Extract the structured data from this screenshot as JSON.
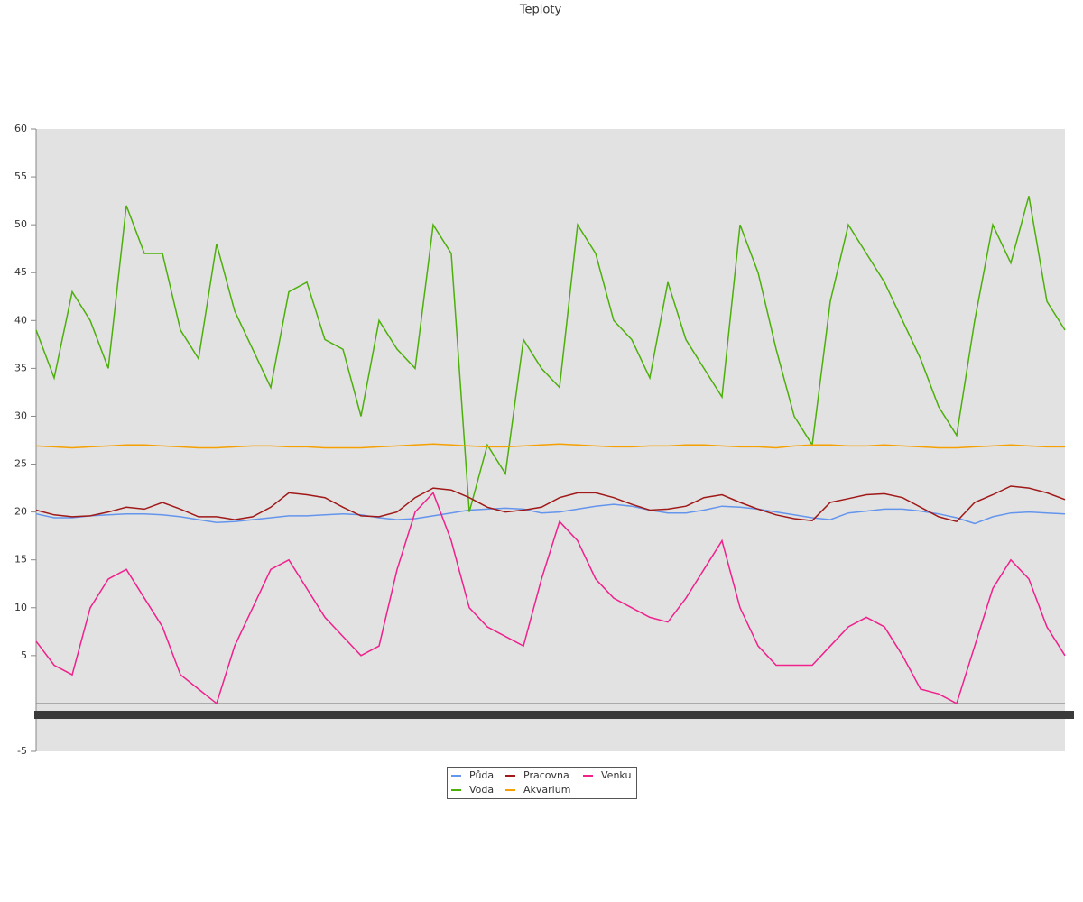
{
  "chart_data": {
    "type": "line",
    "title": "Teploty",
    "ylim": [
      -5,
      60
    ],
    "yticks": [
      60,
      55,
      50,
      45,
      40,
      35,
      30,
      25,
      20,
      15,
      10,
      5,
      -5
    ],
    "legend": "bottom",
    "series": [
      {
        "name": "Půda",
        "color": "#6495ed",
        "values": [
          19.8,
          19.4,
          19.4,
          19.6,
          19.7,
          19.8,
          19.8,
          19.7,
          19.5,
          19.2,
          18.9,
          19.0,
          19.2,
          19.4,
          19.6,
          19.6,
          19.7,
          19.8,
          19.7,
          19.4,
          19.2,
          19.3,
          19.6,
          19.9,
          20.2,
          20.3,
          20.4,
          20.3,
          19.9,
          20.0,
          20.3,
          20.6,
          20.8,
          20.6,
          20.2,
          19.9,
          19.9,
          20.2,
          20.6,
          20.5,
          20.3,
          20.0,
          19.7,
          19.4,
          19.2,
          19.9,
          20.1,
          20.3,
          20.3,
          20.1,
          19.8,
          19.4,
          18.8,
          19.5,
          19.9,
          20.0,
          19.9,
          19.8
        ]
      },
      {
        "name": "Voda",
        "color": "#4caf0a",
        "values": [
          39,
          34,
          43,
          40,
          35,
          52,
          47,
          47,
          39,
          36,
          48,
          41,
          37,
          33,
          43,
          44,
          38,
          37,
          30,
          40,
          37,
          35,
          50,
          47,
          20,
          27,
          24,
          38,
          35,
          33,
          50,
          47,
          40,
          38,
          34,
          44,
          38,
          35,
          32,
          50,
          45,
          37,
          30,
          27,
          42,
          50,
          47,
          44,
          40,
          36,
          31,
          28,
          40,
          50,
          46,
          53,
          42,
          39
        ]
      },
      {
        "name": "Pracovna",
        "color": "#a01818",
        "values": [
          20.2,
          19.7,
          19.5,
          19.6,
          20,
          20.5,
          20.3,
          21,
          20.3,
          19.5,
          19.5,
          19.2,
          19.5,
          20.5,
          22,
          21.8,
          21.5,
          20.5,
          19.6,
          19.5,
          20,
          21.5,
          22.5,
          22.3,
          21.5,
          20.5,
          20,
          20.2,
          20.5,
          21.5,
          22,
          22,
          21.5,
          20.8,
          20.2,
          20.3,
          20.6,
          21.5,
          21.8,
          21,
          20.3,
          19.7,
          19.3,
          19.1,
          21,
          21.4,
          21.8,
          21.9,
          21.5,
          20.5,
          19.5,
          19,
          21,
          21.8,
          22.7,
          22.5,
          22,
          21.3
        ]
      },
      {
        "name": "Akvarium",
        "color": "#f5a000",
        "values": [
          26.9,
          26.8,
          26.7,
          26.8,
          26.9,
          27,
          27,
          26.9,
          26.8,
          26.7,
          26.7,
          26.8,
          26.9,
          26.9,
          26.8,
          26.8,
          26.7,
          26.7,
          26.7,
          26.8,
          26.9,
          27,
          27.1,
          27,
          26.9,
          26.8,
          26.8,
          26.9,
          27,
          27.1,
          27,
          26.9,
          26.8,
          26.8,
          26.9,
          26.9,
          27,
          27,
          26.9,
          26.8,
          26.8,
          26.7,
          26.9,
          27,
          27,
          26.9,
          26.9,
          27,
          26.9,
          26.8,
          26.7,
          26.7,
          26.8,
          26.9,
          27,
          26.9,
          26.8,
          26.8
        ]
      },
      {
        "name": "Venku",
        "color": "#f0208c",
        "values": [
          6.5,
          4,
          3,
          10,
          13,
          14,
          11,
          8,
          3,
          1.5,
          0,
          6,
          10,
          14,
          15,
          12,
          9,
          7,
          5,
          6,
          14,
          20,
          22,
          17,
          10,
          8,
          7,
          6,
          13,
          19,
          17,
          13,
          11,
          10,
          9,
          8.5,
          11,
          14,
          17,
          10,
          6,
          4,
          4,
          4,
          6,
          8,
          9,
          8,
          5,
          1.5,
          1,
          0,
          6,
          12,
          15,
          13,
          8,
          5
        ]
      }
    ]
  }
}
